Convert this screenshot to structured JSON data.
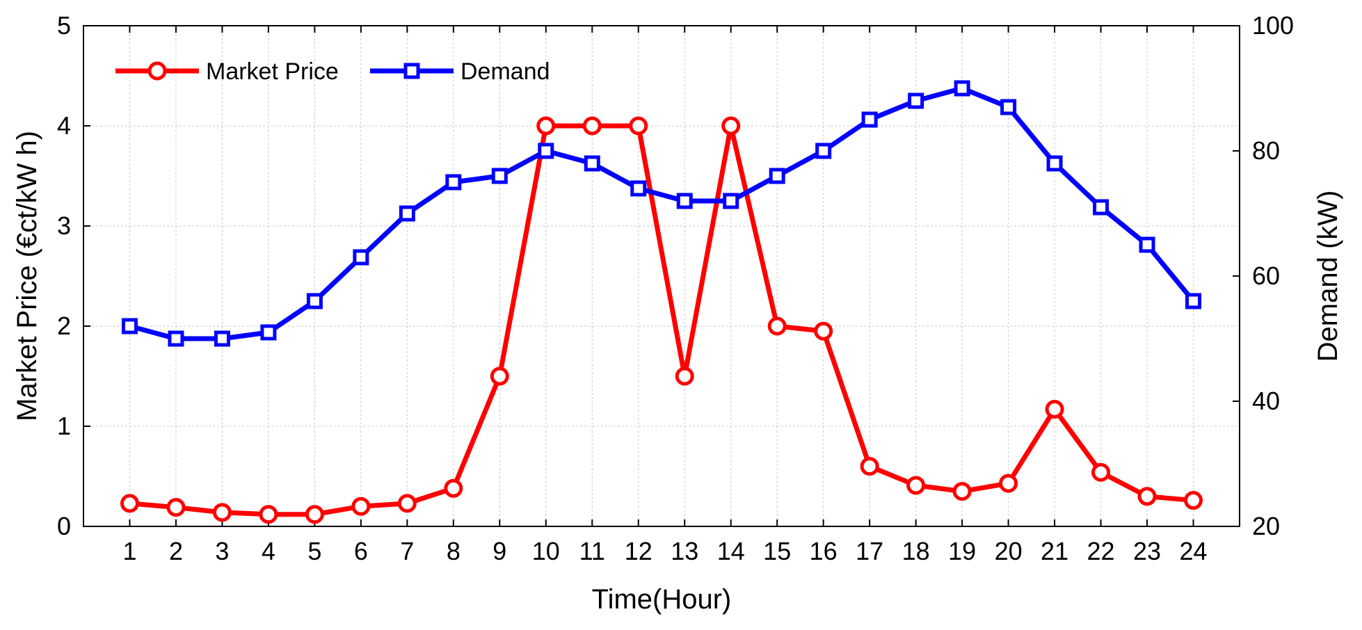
{
  "chart_data": {
    "type": "line",
    "title": "",
    "xlabel": "Time(Hour)",
    "ylabel_left": "Market Price (€ct/kW h)",
    "ylabel_right": "Demand (kW)",
    "x": [
      1,
      2,
      3,
      4,
      5,
      6,
      7,
      8,
      9,
      10,
      11,
      12,
      13,
      14,
      15,
      16,
      17,
      18,
      19,
      20,
      21,
      22,
      23,
      24
    ],
    "xlim": [
      0,
      25
    ],
    "ylim_left": [
      0,
      5
    ],
    "ylim_right": [
      20,
      100
    ],
    "yticks_left": [
      0,
      1,
      2,
      3,
      4,
      5
    ],
    "yticks_right": [
      20,
      40,
      60,
      80,
      100
    ],
    "grid": true,
    "legend_position": "top-left",
    "series": [
      {
        "name": "Market Price",
        "axis": "left",
        "color": "#ff0000",
        "marker": "circle",
        "values": [
          0.23,
          0.19,
          0.14,
          0.12,
          0.12,
          0.2,
          0.23,
          0.38,
          1.5,
          4.0,
          4.0,
          4.0,
          1.5,
          4.0,
          2.0,
          1.95,
          0.6,
          0.41,
          0.35,
          0.43,
          1.17,
          0.54,
          0.3,
          0.26
        ]
      },
      {
        "name": "Demand",
        "axis": "right",
        "color": "#0000ff",
        "marker": "square",
        "values": [
          52,
          50,
          50,
          51,
          56,
          63,
          70,
          75,
          76,
          80,
          78,
          74,
          72,
          72,
          76,
          80,
          85,
          88,
          90,
          87,
          78,
          71,
          65,
          56
        ]
      }
    ]
  }
}
